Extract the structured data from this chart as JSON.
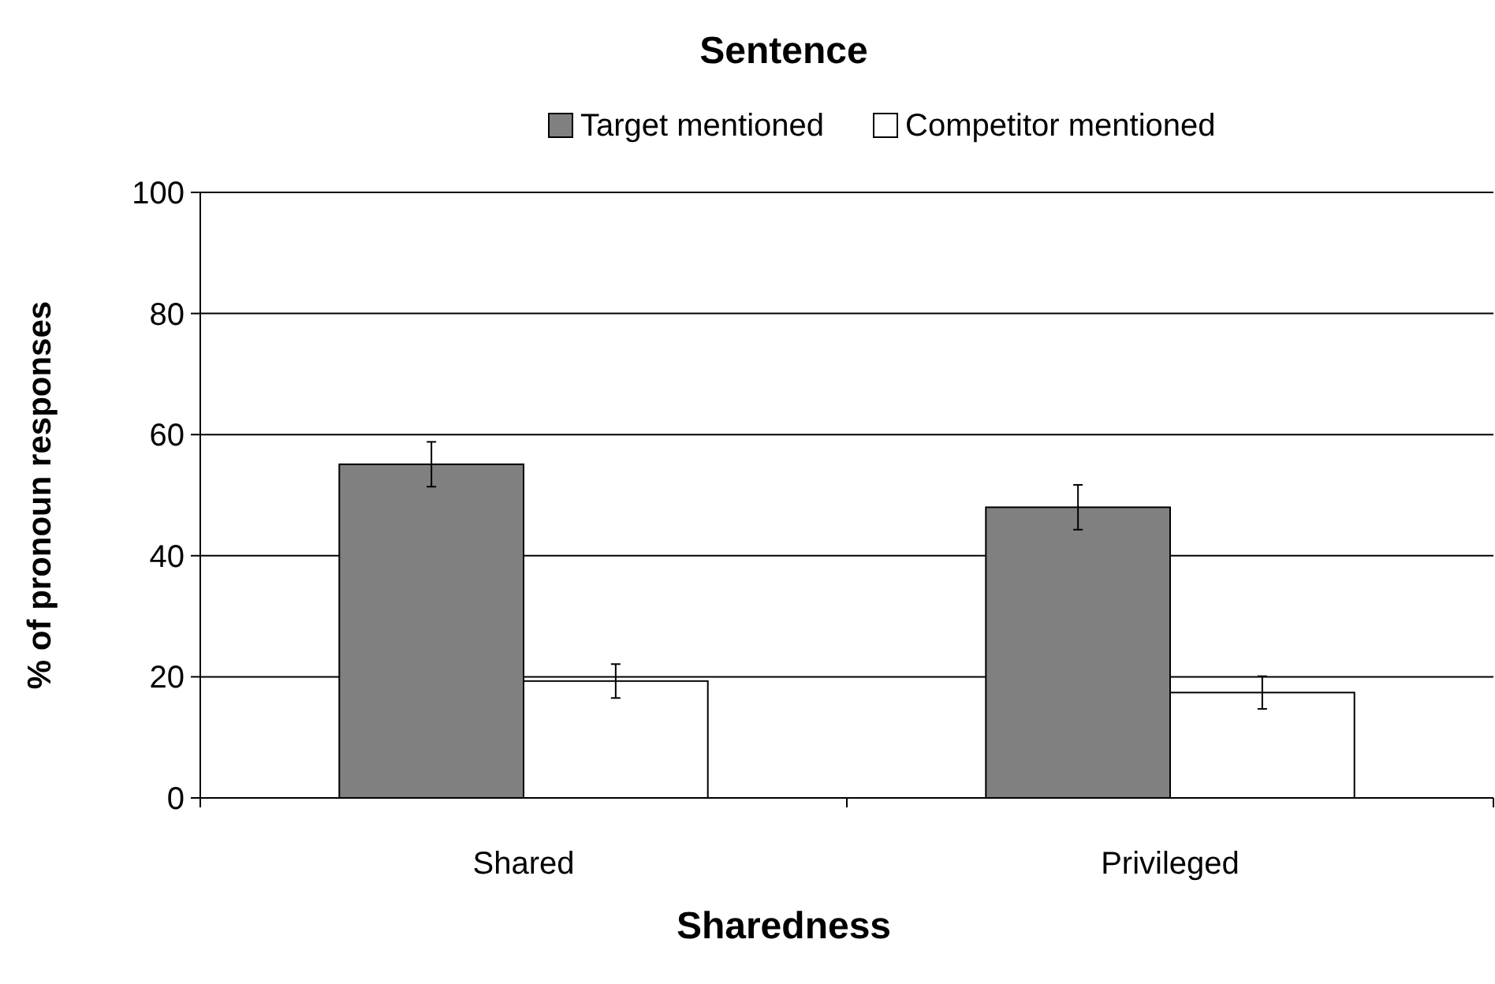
{
  "chart_data": {
    "type": "bar",
    "title": "Sentence",
    "xlabel": "Sharedness",
    "ylabel": "% of pronoun responses",
    "categories": [
      "Shared",
      "Privileged"
    ],
    "series": [
      {
        "name": "Target mentioned",
        "color": "#808080",
        "values": [
          55.1,
          48.0
        ],
        "errors": [
          3.7,
          3.7
        ]
      },
      {
        "name": "Competitor mentioned",
        "color": "#ffffff",
        "values": [
          19.3,
          17.4
        ],
        "errors": [
          2.8,
          2.7
        ]
      }
    ],
    "ylim": [
      0,
      100
    ],
    "yticks": [
      0,
      20,
      40,
      60,
      80,
      100
    ],
    "grid": "y",
    "legend": "top"
  }
}
